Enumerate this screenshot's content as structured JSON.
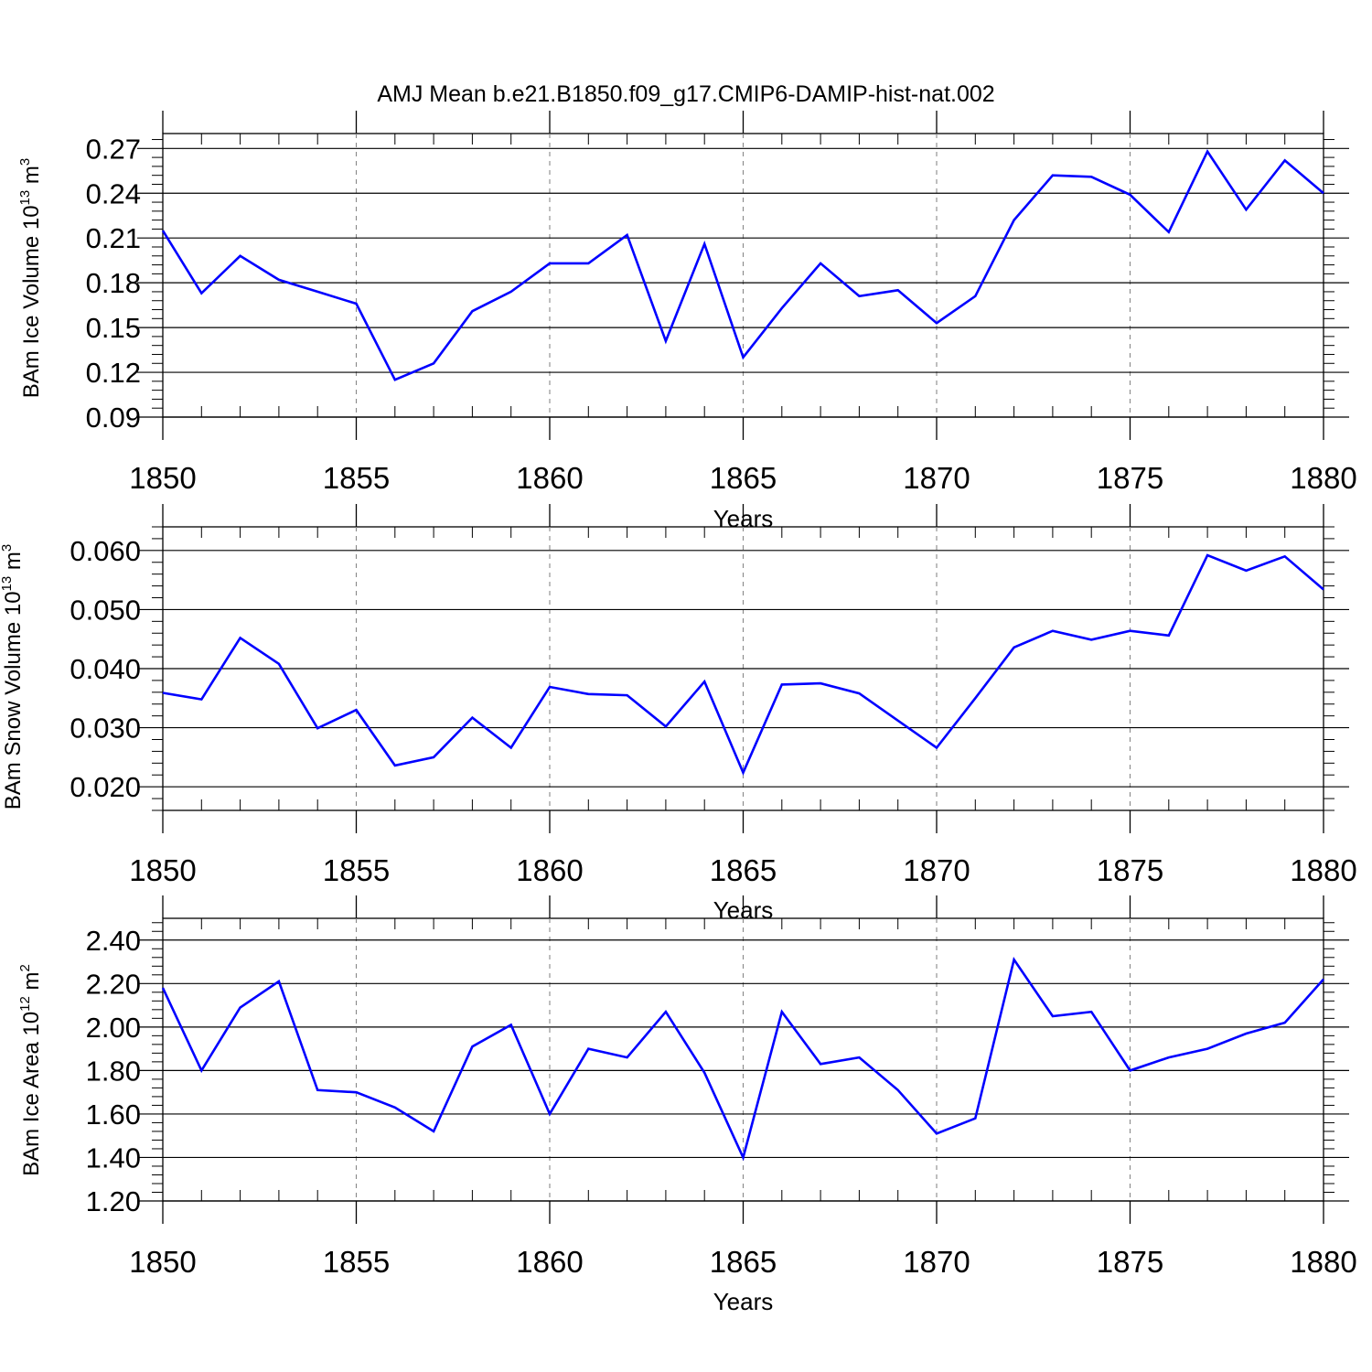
{
  "title": "AMJ Mean b.e21.B1850.f09_g17.CMIP6-DAMIP-hist-nat.002",
  "chart_data": [
    {
      "type": "line",
      "title": "AMJ Mean b.e21.B1850.f09_g17.CMIP6-DAMIP-hist-nat.002",
      "xlabel": "Years",
      "ylabel": {
        "text": "BAm Ice Volume 10",
        "sup1": "13",
        "mid": " m",
        "sup2": "3"
      },
      "xlim": [
        1850,
        1880
      ],
      "ylim": [
        0.09,
        0.28
      ],
      "xticks": [
        "1850",
        "1855",
        "1860",
        "1865",
        "1870",
        "1875",
        "1880"
      ],
      "yticks": [
        "0.09",
        "0.12",
        "0.15",
        "0.18",
        "0.21",
        "0.24",
        "0.27"
      ],
      "grid": "vertical dashed at major x ticks",
      "line_color": "#0000ff",
      "x": [
        1850,
        1851,
        1852,
        1853,
        1854,
        1855,
        1856,
        1857,
        1858,
        1859,
        1860,
        1861,
        1862,
        1863,
        1864,
        1865,
        1866,
        1867,
        1868,
        1869,
        1870,
        1871,
        1872,
        1873,
        1874,
        1875,
        1876,
        1877,
        1878,
        1879,
        1880
      ],
      "values": [
        0.215,
        0.173,
        0.198,
        0.182,
        0.174,
        0.166,
        0.115,
        0.126,
        0.161,
        0.174,
        0.193,
        0.193,
        0.212,
        0.141,
        0.206,
        0.13,
        0.163,
        0.193,
        0.171,
        0.175,
        0.153,
        0.171,
        0.222,
        0.252,
        0.251,
        0.239,
        0.214,
        0.268,
        0.229,
        0.262,
        0.24
      ]
    },
    {
      "type": "line",
      "xlabel": "Years",
      "ylabel": {
        "text": "BAm Snow Volume 10",
        "sup1": "13",
        "mid": " m",
        "sup2": "3"
      },
      "xlim": [
        1850,
        1880
      ],
      "ylim": [
        0.016,
        0.064
      ],
      "xticks": [
        "1850",
        "1855",
        "1860",
        "1865",
        "1870",
        "1875",
        "1880"
      ],
      "yticks": [
        "0.020",
        "0.030",
        "0.040",
        "0.050",
        "0.060"
      ],
      "grid": "vertical dashed at major x ticks",
      "line_color": "#0000ff",
      "x": [
        1850,
        1851,
        1852,
        1853,
        1854,
        1855,
        1856,
        1857,
        1858,
        1859,
        1860,
        1861,
        1862,
        1863,
        1864,
        1865,
        1866,
        1867,
        1868,
        1869,
        1870,
        1871,
        1872,
        1873,
        1874,
        1875,
        1876,
        1877,
        1878,
        1879,
        1880
      ],
      "values": [
        0.0359,
        0.0348,
        0.0452,
        0.0408,
        0.0299,
        0.033,
        0.0236,
        0.025,
        0.0317,
        0.0266,
        0.0369,
        0.0357,
        0.0355,
        0.0302,
        0.0378,
        0.0224,
        0.0373,
        0.0375,
        0.0358,
        0.0312,
        0.0266,
        0.035,
        0.0436,
        0.0464,
        0.0449,
        0.0464,
        0.0456,
        0.0592,
        0.0566,
        0.059,
        0.0534
      ]
    },
    {
      "type": "line",
      "xlabel": "Years",
      "ylabel": {
        "text": "BAm Ice Area 10",
        "sup1": "12",
        "mid": " m",
        "sup2": "2"
      },
      "xlim": [
        1850,
        1880
      ],
      "ylim": [
        1.2,
        2.5
      ],
      "xticks": [
        "1850",
        "1855",
        "1860",
        "1865",
        "1870",
        "1875",
        "1880"
      ],
      "yticks": [
        "1.20",
        "1.40",
        "1.60",
        "1.80",
        "2.00",
        "2.20",
        "2.40"
      ],
      "grid": "vertical dashed at major x ticks",
      "line_color": "#0000ff",
      "x": [
        1850,
        1851,
        1852,
        1853,
        1854,
        1855,
        1856,
        1857,
        1858,
        1859,
        1860,
        1861,
        1862,
        1863,
        1864,
        1865,
        1866,
        1867,
        1868,
        1869,
        1870,
        1871,
        1872,
        1873,
        1874,
        1875,
        1876,
        1877,
        1878,
        1879,
        1880
      ],
      "values": [
        2.18,
        1.8,
        2.09,
        2.21,
        1.71,
        1.7,
        1.63,
        1.52,
        1.91,
        2.01,
        1.6,
        1.9,
        1.86,
        2.07,
        1.79,
        1.4,
        2.07,
        1.83,
        1.86,
        1.71,
        1.51,
        1.58,
        2.31,
        2.05,
        2.07,
        1.8,
        1.86,
        1.9,
        1.97,
        2.02,
        2.22
      ]
    }
  ]
}
